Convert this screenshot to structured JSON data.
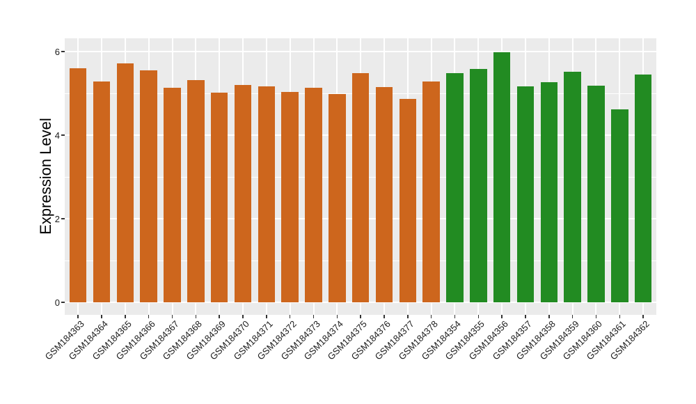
{
  "chart_data": {
    "type": "bar",
    "title": "",
    "xlabel": "",
    "ylabel": "Expression Level",
    "ylim": [
      -0.3,
      6.32
    ],
    "yticks": [
      0,
      2,
      4,
      6
    ],
    "minor_yticks": [
      1,
      3,
      5
    ],
    "grid": true,
    "legend": false,
    "panel_bg": "#EBEBEB",
    "grid_color": "#FFFFFF",
    "tick_mark_color": "#333333",
    "axis_text_color": "#1A1A1A",
    "groups": [
      {
        "name": "group-orange",
        "color": "#CD661D"
      },
      {
        "name": "group-green",
        "color": "#228B22"
      }
    ],
    "bars": [
      {
        "label": "GSM184363",
        "value": 5.6,
        "group": "group-orange"
      },
      {
        "label": "GSM184364",
        "value": 5.28,
        "group": "group-orange"
      },
      {
        "label": "GSM184365",
        "value": 5.71,
        "group": "group-orange"
      },
      {
        "label": "GSM184366",
        "value": 5.55,
        "group": "group-orange"
      },
      {
        "label": "GSM184367",
        "value": 5.13,
        "group": "group-orange"
      },
      {
        "label": "GSM184368",
        "value": 5.31,
        "group": "group-orange"
      },
      {
        "label": "GSM184369",
        "value": 5.02,
        "group": "group-orange"
      },
      {
        "label": "GSM184370",
        "value": 5.2,
        "group": "group-orange"
      },
      {
        "label": "GSM184371",
        "value": 5.17,
        "group": "group-orange"
      },
      {
        "label": "GSM184372",
        "value": 5.04,
        "group": "group-orange"
      },
      {
        "label": "GSM184373",
        "value": 5.13,
        "group": "group-orange"
      },
      {
        "label": "GSM184374",
        "value": 4.98,
        "group": "group-orange"
      },
      {
        "label": "GSM184375",
        "value": 5.49,
        "group": "group-orange"
      },
      {
        "label": "GSM184376",
        "value": 5.15,
        "group": "group-orange"
      },
      {
        "label": "GSM184377",
        "value": 4.87,
        "group": "group-orange"
      },
      {
        "label": "GSM184378",
        "value": 5.29,
        "group": "group-orange"
      },
      {
        "label": "GSM184354",
        "value": 5.48,
        "group": "group-green"
      },
      {
        "label": "GSM184355",
        "value": 5.59,
        "group": "group-green"
      },
      {
        "label": "GSM184356",
        "value": 5.98,
        "group": "group-green"
      },
      {
        "label": "GSM184357",
        "value": 5.17,
        "group": "group-green"
      },
      {
        "label": "GSM184358",
        "value": 5.26,
        "group": "group-green"
      },
      {
        "label": "GSM184359",
        "value": 5.52,
        "group": "group-green"
      },
      {
        "label": "GSM184360",
        "value": 5.18,
        "group": "group-green"
      },
      {
        "label": "GSM184361",
        "value": 4.62,
        "group": "group-green"
      },
      {
        "label": "GSM184362",
        "value": 5.45,
        "group": "group-green"
      }
    ]
  }
}
